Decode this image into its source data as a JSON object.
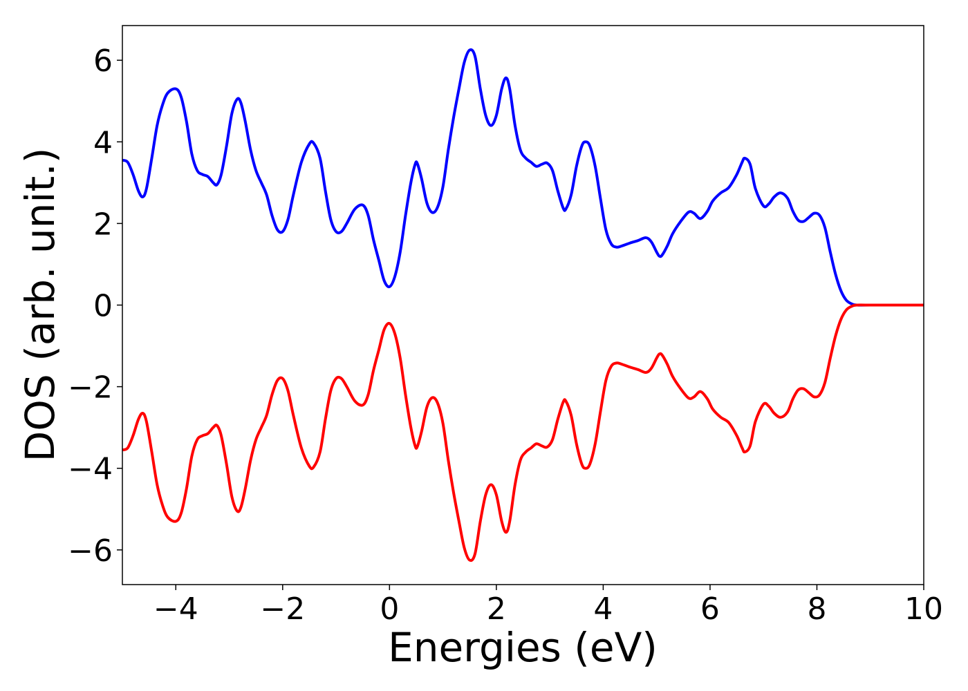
{
  "chart_data": {
    "type": "line",
    "xlabel": "Energies (eV)",
    "ylabel": "DOS (arb. unit.)",
    "xlim": [
      -5,
      10
    ],
    "ylim": [
      -6.85,
      6.85
    ],
    "grid": false,
    "legend": "none",
    "x_ticks": [
      {
        "value": -4,
        "label": "−4"
      },
      {
        "value": -2,
        "label": "−2"
      },
      {
        "value": 0,
        "label": "0"
      },
      {
        "value": 2,
        "label": "2"
      },
      {
        "value": 4,
        "label": "4"
      },
      {
        "value": 6,
        "label": "6"
      },
      {
        "value": 8,
        "label": "8"
      },
      {
        "value": 10,
        "label": "10"
      }
    ],
    "y_ticks": [
      {
        "value": -6,
        "label": "−6"
      },
      {
        "value": -4,
        "label": "−4"
      },
      {
        "value": -2,
        "label": "−2"
      },
      {
        "value": 0,
        "label": "0"
      },
      {
        "value": 2,
        "label": "2"
      },
      {
        "value": 4,
        "label": "4"
      },
      {
        "value": 6,
        "label": "6"
      }
    ],
    "series": [
      {
        "color": "#0000ff",
        "points": [
          [
            -5.0,
            3.55
          ],
          [
            -4.9,
            3.5
          ],
          [
            -4.8,
            3.2
          ],
          [
            -4.7,
            2.8
          ],
          [
            -4.62,
            2.65
          ],
          [
            -4.55,
            2.85
          ],
          [
            -4.45,
            3.6
          ],
          [
            -4.35,
            4.4
          ],
          [
            -4.25,
            4.9
          ],
          [
            -4.15,
            5.2
          ],
          [
            -4.0,
            5.3
          ],
          [
            -3.9,
            5.1
          ],
          [
            -3.8,
            4.5
          ],
          [
            -3.7,
            3.7
          ],
          [
            -3.6,
            3.3
          ],
          [
            -3.5,
            3.2
          ],
          [
            -3.4,
            3.15
          ],
          [
            -3.3,
            3.0
          ],
          [
            -3.23,
            2.95
          ],
          [
            -3.15,
            3.2
          ],
          [
            -3.05,
            3.9
          ],
          [
            -2.95,
            4.7
          ],
          [
            -2.85,
            5.05
          ],
          [
            -2.78,
            4.95
          ],
          [
            -2.7,
            4.5
          ],
          [
            -2.6,
            3.8
          ],
          [
            -2.5,
            3.3
          ],
          [
            -2.4,
            3.0
          ],
          [
            -2.3,
            2.7
          ],
          [
            -2.2,
            2.2
          ],
          [
            -2.1,
            1.85
          ],
          [
            -2.0,
            1.8
          ],
          [
            -1.9,
            2.1
          ],
          [
            -1.8,
            2.7
          ],
          [
            -1.65,
            3.5
          ],
          [
            -1.5,
            3.95
          ],
          [
            -1.42,
            3.97
          ],
          [
            -1.3,
            3.6
          ],
          [
            -1.2,
            2.8
          ],
          [
            -1.1,
            2.1
          ],
          [
            -1.0,
            1.8
          ],
          [
            -0.9,
            1.8
          ],
          [
            -0.8,
            2.0
          ],
          [
            -0.65,
            2.35
          ],
          [
            -0.5,
            2.45
          ],
          [
            -0.4,
            2.2
          ],
          [
            -0.3,
            1.6
          ],
          [
            -0.2,
            1.1
          ],
          [
            -0.1,
            0.6
          ],
          [
            0.0,
            0.45
          ],
          [
            0.1,
            0.7
          ],
          [
            0.2,
            1.3
          ],
          [
            0.3,
            2.2
          ],
          [
            0.4,
            3.0
          ],
          [
            0.48,
            3.45
          ],
          [
            0.52,
            3.47
          ],
          [
            0.6,
            3.1
          ],
          [
            0.7,
            2.5
          ],
          [
            0.8,
            2.27
          ],
          [
            0.9,
            2.4
          ],
          [
            1.0,
            2.9
          ],
          [
            1.1,
            3.8
          ],
          [
            1.2,
            4.6
          ],
          [
            1.3,
            5.3
          ],
          [
            1.4,
            5.95
          ],
          [
            1.5,
            6.25
          ],
          [
            1.6,
            6.1
          ],
          [
            1.7,
            5.3
          ],
          [
            1.8,
            4.65
          ],
          [
            1.9,
            4.4
          ],
          [
            2.0,
            4.65
          ],
          [
            2.1,
            5.3
          ],
          [
            2.18,
            5.57
          ],
          [
            2.25,
            5.3
          ],
          [
            2.35,
            4.4
          ],
          [
            2.45,
            3.8
          ],
          [
            2.55,
            3.6
          ],
          [
            2.65,
            3.5
          ],
          [
            2.75,
            3.4
          ],
          [
            2.85,
            3.45
          ],
          [
            2.95,
            3.48
          ],
          [
            3.05,
            3.3
          ],
          [
            3.15,
            2.8
          ],
          [
            3.25,
            2.38
          ],
          [
            3.3,
            2.35
          ],
          [
            3.4,
            2.7
          ],
          [
            3.5,
            3.4
          ],
          [
            3.6,
            3.9
          ],
          [
            3.67,
            4.0
          ],
          [
            3.75,
            3.9
          ],
          [
            3.85,
            3.4
          ],
          [
            3.95,
            2.6
          ],
          [
            4.05,
            1.85
          ],
          [
            4.15,
            1.5
          ],
          [
            4.25,
            1.42
          ],
          [
            4.35,
            1.45
          ],
          [
            4.5,
            1.52
          ],
          [
            4.65,
            1.58
          ],
          [
            4.8,
            1.65
          ],
          [
            4.9,
            1.55
          ],
          [
            5.0,
            1.3
          ],
          [
            5.05,
            1.2
          ],
          [
            5.1,
            1.22
          ],
          [
            5.2,
            1.45
          ],
          [
            5.3,
            1.75
          ],
          [
            5.45,
            2.05
          ],
          [
            5.6,
            2.28
          ],
          [
            5.7,
            2.25
          ],
          [
            5.82,
            2.12
          ],
          [
            5.95,
            2.3
          ],
          [
            6.05,
            2.55
          ],
          [
            6.2,
            2.75
          ],
          [
            6.35,
            2.88
          ],
          [
            6.5,
            3.2
          ],
          [
            6.6,
            3.5
          ],
          [
            6.65,
            3.6
          ],
          [
            6.75,
            3.45
          ],
          [
            6.85,
            2.85
          ],
          [
            7.0,
            2.43
          ],
          [
            7.1,
            2.48
          ],
          [
            7.2,
            2.65
          ],
          [
            7.32,
            2.75
          ],
          [
            7.45,
            2.62
          ],
          [
            7.55,
            2.3
          ],
          [
            7.65,
            2.08
          ],
          [
            7.75,
            2.05
          ],
          [
            7.85,
            2.15
          ],
          [
            7.95,
            2.25
          ],
          [
            8.05,
            2.2
          ],
          [
            8.15,
            1.9
          ],
          [
            8.25,
            1.3
          ],
          [
            8.35,
            0.75
          ],
          [
            8.45,
            0.35
          ],
          [
            8.55,
            0.12
          ],
          [
            8.65,
            0.03
          ],
          [
            8.75,
            0.0
          ],
          [
            9.0,
            0.0
          ],
          [
            10.0,
            0.0
          ]
        ]
      },
      {
        "color": "#ff0000",
        "points": [
          [
            -5.0,
            -3.55
          ],
          [
            -4.9,
            -3.5
          ],
          [
            -4.8,
            -3.2
          ],
          [
            -4.7,
            -2.8
          ],
          [
            -4.62,
            -2.65
          ],
          [
            -4.55,
            -2.85
          ],
          [
            -4.45,
            -3.6
          ],
          [
            -4.35,
            -4.4
          ],
          [
            -4.25,
            -4.9
          ],
          [
            -4.15,
            -5.2
          ],
          [
            -4.0,
            -5.3
          ],
          [
            -3.9,
            -5.1
          ],
          [
            -3.8,
            -4.5
          ],
          [
            -3.7,
            -3.7
          ],
          [
            -3.6,
            -3.3
          ],
          [
            -3.5,
            -3.2
          ],
          [
            -3.4,
            -3.15
          ],
          [
            -3.3,
            -3.0
          ],
          [
            -3.23,
            -2.95
          ],
          [
            -3.15,
            -3.2
          ],
          [
            -3.05,
            -3.9
          ],
          [
            -2.95,
            -4.7
          ],
          [
            -2.85,
            -5.05
          ],
          [
            -2.78,
            -4.95
          ],
          [
            -2.7,
            -4.5
          ],
          [
            -2.6,
            -3.8
          ],
          [
            -2.5,
            -3.3
          ],
          [
            -2.4,
            -3.0
          ],
          [
            -2.3,
            -2.7
          ],
          [
            -2.2,
            -2.2
          ],
          [
            -2.1,
            -1.85
          ],
          [
            -2.0,
            -1.8
          ],
          [
            -1.9,
            -2.1
          ],
          [
            -1.8,
            -2.7
          ],
          [
            -1.65,
            -3.5
          ],
          [
            -1.5,
            -3.95
          ],
          [
            -1.42,
            -3.97
          ],
          [
            -1.3,
            -3.6
          ],
          [
            -1.2,
            -2.8
          ],
          [
            -1.1,
            -2.1
          ],
          [
            -1.0,
            -1.8
          ],
          [
            -0.9,
            -1.8
          ],
          [
            -0.8,
            -2.0
          ],
          [
            -0.65,
            -2.35
          ],
          [
            -0.5,
            -2.45
          ],
          [
            -0.4,
            -2.2
          ],
          [
            -0.3,
            -1.6
          ],
          [
            -0.2,
            -1.1
          ],
          [
            -0.1,
            -0.6
          ],
          [
            0.0,
            -0.45
          ],
          [
            0.1,
            -0.7
          ],
          [
            0.2,
            -1.3
          ],
          [
            0.3,
            -2.2
          ],
          [
            0.4,
            -3.0
          ],
          [
            0.48,
            -3.45
          ],
          [
            0.52,
            -3.47
          ],
          [
            0.6,
            -3.1
          ],
          [
            0.7,
            -2.5
          ],
          [
            0.8,
            -2.27
          ],
          [
            0.9,
            -2.4
          ],
          [
            1.0,
            -2.9
          ],
          [
            1.1,
            -3.8
          ],
          [
            1.2,
            -4.6
          ],
          [
            1.3,
            -5.3
          ],
          [
            1.4,
            -5.95
          ],
          [
            1.5,
            -6.25
          ],
          [
            1.6,
            -6.1
          ],
          [
            1.7,
            -5.3
          ],
          [
            1.8,
            -4.65
          ],
          [
            1.9,
            -4.4
          ],
          [
            2.0,
            -4.65
          ],
          [
            2.1,
            -5.3
          ],
          [
            2.18,
            -5.57
          ],
          [
            2.25,
            -5.3
          ],
          [
            2.35,
            -4.4
          ],
          [
            2.45,
            -3.8
          ],
          [
            2.55,
            -3.6
          ],
          [
            2.65,
            -3.5
          ],
          [
            2.75,
            -3.4
          ],
          [
            2.85,
            -3.45
          ],
          [
            2.95,
            -3.48
          ],
          [
            3.05,
            -3.3
          ],
          [
            3.15,
            -2.8
          ],
          [
            3.25,
            -2.38
          ],
          [
            3.3,
            -2.35
          ],
          [
            3.4,
            -2.7
          ],
          [
            3.5,
            -3.4
          ],
          [
            3.6,
            -3.9
          ],
          [
            3.67,
            -4.0
          ],
          [
            3.75,
            -3.9
          ],
          [
            3.85,
            -3.4
          ],
          [
            3.95,
            -2.6
          ],
          [
            4.05,
            -1.85
          ],
          [
            4.15,
            -1.5
          ],
          [
            4.25,
            -1.42
          ],
          [
            4.35,
            -1.45
          ],
          [
            4.5,
            -1.52
          ],
          [
            4.65,
            -1.58
          ],
          [
            4.8,
            -1.65
          ],
          [
            4.9,
            -1.55
          ],
          [
            5.0,
            -1.3
          ],
          [
            5.05,
            -1.2
          ],
          [
            5.1,
            -1.22
          ],
          [
            5.2,
            -1.45
          ],
          [
            5.3,
            -1.75
          ],
          [
            5.45,
            -2.05
          ],
          [
            5.6,
            -2.28
          ],
          [
            5.7,
            -2.25
          ],
          [
            5.82,
            -2.12
          ],
          [
            5.95,
            -2.3
          ],
          [
            6.05,
            -2.55
          ],
          [
            6.2,
            -2.75
          ],
          [
            6.35,
            -2.88
          ],
          [
            6.5,
            -3.2
          ],
          [
            6.6,
            -3.5
          ],
          [
            6.65,
            -3.6
          ],
          [
            6.75,
            -3.45
          ],
          [
            6.85,
            -2.85
          ],
          [
            7.0,
            -2.43
          ],
          [
            7.1,
            -2.48
          ],
          [
            7.2,
            -2.65
          ],
          [
            7.32,
            -2.75
          ],
          [
            7.45,
            -2.62
          ],
          [
            7.55,
            -2.3
          ],
          [
            7.65,
            -2.08
          ],
          [
            7.75,
            -2.05
          ],
          [
            7.85,
            -2.15
          ],
          [
            7.95,
            -2.25
          ],
          [
            8.05,
            -2.2
          ],
          [
            8.15,
            -1.9
          ],
          [
            8.25,
            -1.3
          ],
          [
            8.35,
            -0.75
          ],
          [
            8.45,
            -0.35
          ],
          [
            8.55,
            -0.12
          ],
          [
            8.65,
            -0.03
          ],
          [
            8.75,
            0.0
          ],
          [
            9.0,
            0.0
          ],
          [
            10.0,
            0.0
          ]
        ]
      }
    ]
  }
}
